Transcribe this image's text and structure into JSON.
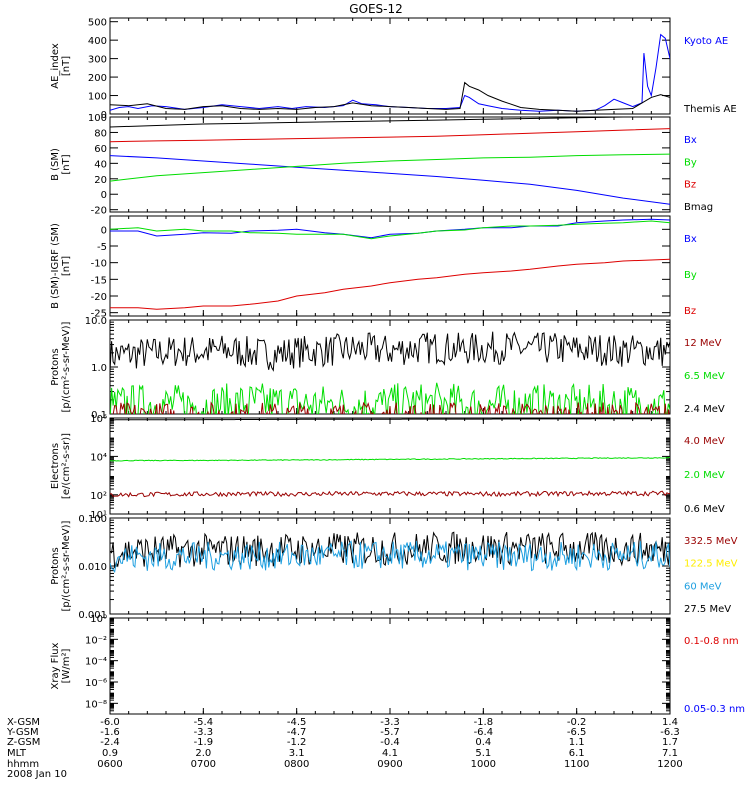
{
  "title": "GOES-12",
  "colors": {
    "black": "#000000",
    "blue": "#0000ff",
    "green": "#00dd00",
    "red": "#dd0000",
    "darkred": "#990000",
    "yellow": "#ffee00",
    "cyan": "#1e9fe0"
  },
  "chart_data": [
    {
      "id": "ae",
      "type": "line",
      "ylabel": [
        "AE_index",
        "[nT]"
      ],
      "ylim": [
        0,
        520
      ],
      "yticks": [
        0,
        100,
        200,
        300,
        400,
        500
      ],
      "ytick_labels": [
        "0",
        "100",
        "200",
        "300",
        "400",
        "500"
      ],
      "legend": [
        {
          "text": "Kyoto AE",
          "color": "#0000ff"
        },
        {
          "text": "Themis AE",
          "color": "#000000"
        }
      ],
      "series": [
        {
          "name": "Kyoto AE",
          "color": "#0000ff",
          "x": [
            6.0,
            6.1,
            6.2,
            6.3,
            6.45,
            6.6,
            6.8,
            7.0,
            7.2,
            7.4,
            7.6,
            7.8,
            7.95,
            8.1,
            8.3,
            8.5,
            8.6,
            8.7,
            8.85,
            9.0,
            9.2,
            9.4,
            9.6,
            9.75,
            9.8,
            9.85,
            9.95,
            10.05,
            10.2,
            10.4,
            10.6,
            10.8,
            11.0,
            11.2,
            11.3,
            11.4,
            11.5,
            11.6,
            11.7,
            11.72,
            11.76,
            11.8,
            11.85,
            11.9,
            11.95,
            12.0
          ],
          "y": [
            20,
            35,
            40,
            30,
            45,
            40,
            25,
            35,
            50,
            40,
            30,
            40,
            30,
            40,
            35,
            45,
            75,
            55,
            50,
            40,
            35,
            30,
            30,
            35,
            100,
            90,
            55,
            45,
            30,
            20,
            15,
            20,
            15,
            20,
            45,
            80,
            60,
            40,
            60,
            330,
            150,
            100,
            250,
            430,
            410,
            300
          ]
        },
        {
          "name": "Themis AE",
          "color": "#000000",
          "x": [
            6.0,
            6.2,
            6.4,
            6.6,
            6.8,
            7.0,
            7.2,
            7.4,
            7.6,
            7.8,
            8.0,
            8.2,
            8.4,
            8.6,
            8.8,
            9.0,
            9.2,
            9.4,
            9.6,
            9.75,
            9.8,
            9.85,
            9.95,
            10.05,
            10.2,
            10.4,
            10.6,
            10.8,
            11.0,
            11.2,
            11.4,
            11.6,
            11.7,
            11.8,
            11.9,
            12.0
          ],
          "y": [
            50,
            45,
            55,
            30,
            25,
            40,
            45,
            30,
            25,
            30,
            25,
            35,
            40,
            60,
            45,
            40,
            35,
            30,
            25,
            30,
            170,
            150,
            130,
            100,
            70,
            35,
            25,
            20,
            15,
            20,
            25,
            30,
            60,
            90,
            105,
            90
          ]
        }
      ]
    },
    {
      "id": "bsm",
      "type": "line",
      "ylabel": [
        "B (SM)",
        "[nT]"
      ],
      "ylim": [
        -23,
        100
      ],
      "yticks": [
        -20,
        0,
        20,
        40,
        60,
        80,
        100
      ],
      "ytick_labels": [
        "-20",
        "0",
        "20",
        "40",
        "60",
        "80",
        "100"
      ],
      "legend": [
        {
          "text": "Bx",
          "color": "#0000ff"
        },
        {
          "text": "By",
          "color": "#00dd00"
        },
        {
          "text": "Bz",
          "color": "#dd0000"
        },
        {
          "text": "Bmag",
          "color": "#000000"
        }
      ],
      "series": [
        {
          "name": "Bx",
          "color": "#0000ff",
          "x": [
            6.0,
            6.5,
            7.0,
            7.5,
            8.0,
            8.5,
            9.0,
            9.5,
            10.0,
            10.5,
            11.0,
            11.5,
            12.0
          ],
          "y": [
            50,
            47,
            43,
            39,
            35,
            31,
            27,
            23,
            18,
            13,
            5,
            -5,
            -13
          ]
        },
        {
          "name": "By",
          "color": "#00dd00",
          "x": [
            6.0,
            6.5,
            7.0,
            7.5,
            8.0,
            8.5,
            9.0,
            9.5,
            10.0,
            10.5,
            11.0,
            11.5,
            12.0
          ],
          "y": [
            17,
            24,
            28,
            32,
            36,
            40,
            43,
            45,
            47,
            48,
            50,
            51,
            52
          ]
        },
        {
          "name": "Bz",
          "color": "#dd0000",
          "x": [
            6.0,
            6.5,
            7.0,
            7.5,
            8.0,
            8.5,
            9.0,
            9.5,
            10.0,
            10.5,
            11.0,
            11.5,
            12.0
          ],
          "y": [
            68,
            69,
            70,
            71,
            72,
            73,
            74,
            75,
            77,
            79,
            81,
            83,
            85
          ]
        },
        {
          "name": "Bmag",
          "color": "#000000",
          "x": [
            6.0,
            6.5,
            7.0,
            7.5,
            8.0,
            8.5,
            9.0,
            9.5,
            10.0,
            10.5,
            11.0,
            11.5,
            12.0
          ],
          "y": [
            87,
            89,
            91,
            92,
            93,
            94,
            95,
            96,
            97,
            98,
            99,
            100,
            101
          ]
        }
      ]
    },
    {
      "id": "bigrf",
      "type": "line",
      "ylabel": [
        "B (SM)-IGRF (SM)",
        "[nT]"
      ],
      "ylim": [
        -26,
        4
      ],
      "yticks": [
        -25,
        -20,
        -15,
        -10,
        -5,
        0
      ],
      "ytick_labels": [
        "-25",
        "-20",
        "-15",
        "-10",
        "-5",
        "0"
      ],
      "legend": [
        {
          "text": "Bx",
          "color": "#0000ff"
        },
        {
          "text": "By",
          "color": "#00dd00"
        },
        {
          "text": "Bz",
          "color": "#dd0000"
        }
      ],
      "series": [
        {
          "name": "Bx",
          "color": "#0000ff",
          "x": [
            6.0,
            6.3,
            6.5,
            6.8,
            7.0,
            7.3,
            7.5,
            7.8,
            8.0,
            8.3,
            8.5,
            8.8,
            9.0,
            9.3,
            9.5,
            9.8,
            10.0,
            10.3,
            10.5,
            10.8,
            11.0,
            11.3,
            11.5,
            11.8,
            12.0
          ],
          "y": [
            -0.5,
            -0.5,
            -2,
            -1.5,
            -1,
            -1.2,
            -0.5,
            -0.3,
            0,
            -1,
            -1.5,
            -2.5,
            -1.5,
            -1.2,
            -0.5,
            0,
            0.5,
            0.5,
            1,
            1,
            2,
            2.5,
            2.8,
            3,
            2.8
          ]
        },
        {
          "name": "By",
          "color": "#00dd00",
          "x": [
            6.0,
            6.3,
            6.5,
            6.8,
            7.0,
            7.3,
            7.5,
            7.8,
            8.0,
            8.3,
            8.5,
            8.8,
            9.0,
            9.3,
            9.5,
            9.8,
            10.0,
            10.3,
            10.5,
            10.8,
            11.0,
            11.3,
            11.5,
            11.8,
            12.0
          ],
          "y": [
            0,
            0.5,
            -0.5,
            0,
            -0.5,
            -0.5,
            -1,
            -1.2,
            -1.5,
            -1.5,
            -1.5,
            -2.8,
            -2,
            -1.2,
            -0.5,
            -0.2,
            0.5,
            1,
            1,
            1.2,
            1.5,
            1.8,
            2,
            2.5,
            2
          ]
        },
        {
          "name": "Bz",
          "color": "#dd0000",
          "x": [
            6.0,
            6.3,
            6.5,
            6.8,
            7.0,
            7.3,
            7.5,
            7.8,
            8.0,
            8.3,
            8.5,
            8.8,
            9.0,
            9.3,
            9.5,
            9.8,
            10.0,
            10.3,
            10.5,
            10.8,
            11.0,
            11.3,
            11.5,
            11.8,
            12.0
          ],
          "y": [
            -23.5,
            -23.5,
            -24,
            -23.5,
            -23,
            -23,
            -22.5,
            -21.5,
            -20,
            -19,
            -18,
            -17,
            -16,
            -15,
            -14.5,
            -13.5,
            -13,
            -12.5,
            -12,
            -11,
            -10.5,
            -10,
            -9.5,
            -9.2,
            -9
          ]
        }
      ]
    },
    {
      "id": "protons1",
      "type": "line",
      "scale": "log",
      "ylabel": [
        "Protons",
        "[p/(cm²-s-sr-MeV)]"
      ],
      "ylim": [
        0.1,
        10
      ],
      "yticks": [
        0.1,
        1,
        10
      ],
      "ytick_labels": [
        "0.1",
        "1.0",
        "10.0"
      ],
      "legend": [
        {
          "text": "12 MeV",
          "color": "#990000"
        },
        {
          "text": "6.5 MeV",
          "color": "#00dd00"
        },
        {
          "text": "2.4 MeV",
          "color": "#000000"
        }
      ],
      "series": [
        {
          "name": "2.4 MeV",
          "color": "#000000",
          "x": [
            6.0,
            6.25,
            6.5,
            6.75,
            7.0,
            7.25,
            7.5,
            7.75,
            8.0,
            8.25,
            8.5,
            8.75,
            9.0,
            9.25,
            9.5,
            9.75,
            10.0,
            10.25,
            10.5,
            10.75,
            11.0,
            11.25,
            11.5,
            11.75,
            12.0
          ],
          "y": [
            1.8,
            1.9,
            2.0,
            2.2,
            2.1,
            2.3,
            2.0,
            1.9,
            2.1,
            2.2,
            2.3,
            2.4,
            2.2,
            2.5,
            2.6,
            2.4,
            2.5,
            2.6,
            2.4,
            2.5,
            2.3,
            2.4,
            2.2,
            2.3,
            2.1
          ],
          "noise": 0.35
        },
        {
          "name": "6.5 MeV",
          "color": "#00dd00",
          "x": [
            6.0,
            6.5,
            7.0,
            7.5,
            8.0,
            8.5,
            9.0,
            9.5,
            10.0,
            10.5,
            11.0,
            11.5,
            12.0
          ],
          "y": [
            0.15,
            0.16,
            0.15,
            0.17,
            0.16,
            0.15,
            0.16,
            0.17,
            0.15,
            0.16,
            0.15,
            0.16,
            0.15
          ],
          "noise": 0.45
        },
        {
          "name": "12 MeV",
          "color": "#990000",
          "x": [
            6.0,
            6.5,
            7.0,
            7.5,
            8.0,
            8.5,
            9.0,
            9.5,
            10.0,
            10.5,
            11.0,
            11.5,
            12.0
          ],
          "y": [
            0.09,
            0.09,
            0.09,
            0.09,
            0.09,
            0.09,
            0.09,
            0.09,
            0.09,
            0.09,
            0.09,
            0.09,
            0.09
          ],
          "noise": 0.3
        }
      ]
    },
    {
      "id": "electrons",
      "type": "line",
      "scale": "log",
      "ylabel": [
        "Electrons",
        "[e/(cm²-s-sr)]"
      ],
      "ylim": [
        10,
        1000000
      ],
      "yticks": [
        10,
        100,
        10000,
        1000000
      ],
      "ytick_labels": [
        "10¹",
        "10²",
        "10⁴",
        "10⁶"
      ],
      "legend": [
        {
          "text": "4.0 MeV",
          "color": "#990000"
        },
        {
          "text": "2.0 MeV",
          "color": "#00dd00"
        },
        {
          "text": "0.6 MeV",
          "color": "#000000"
        }
      ],
      "series": [
        {
          "name": "0.6 MeV",
          "color": "#000000",
          "x": [
            6.0,
            7.0,
            8.0,
            9.0,
            10.0,
            11.0,
            12.0
          ],
          "y": [
            800000,
            820000,
            850000,
            870000,
            880000,
            900000,
            920000
          ],
          "noise": 0.0
        },
        {
          "name": "2.0 MeV",
          "color": "#00dd00",
          "x": [
            6.0,
            7.0,
            8.0,
            9.0,
            10.0,
            11.0,
            12.0
          ],
          "y": [
            6000,
            6200,
            6500,
            7000,
            7500,
            8000,
            8500
          ],
          "noise": 0.02
        },
        {
          "name": "4.0 MeV",
          "color": "#990000",
          "x": [
            6.0,
            7.0,
            8.0,
            9.0,
            10.0,
            11.0,
            12.0
          ],
          "y": [
            100,
            110,
            110,
            115,
            110,
            115,
            120
          ],
          "noise": 0.12
        }
      ]
    },
    {
      "id": "protons2",
      "type": "line",
      "scale": "log",
      "ylabel": [
        "Protons",
        "[p/(cm²-s-sr-MeV)]"
      ],
      "ylim": [
        0.001,
        0.1
      ],
      "yticks": [
        0.001,
        0.01,
        0.1
      ],
      "ytick_labels": [
        "0.001",
        "0.010",
        "0.100"
      ],
      "legend": [
        {
          "text": "332.5 MeV",
          "color": "#990000"
        },
        {
          "text": "122.5 MeV",
          "color": "#ffee00"
        },
        {
          "text": "60 MeV",
          "color": "#1e9fe0"
        },
        {
          "text": "27.5 MeV",
          "color": "#000000"
        }
      ],
      "series": [
        {
          "name": "27.5 MeV",
          "color": "#000000",
          "x": [
            6.0,
            7.0,
            8.0,
            9.0,
            10.0,
            11.0,
            12.0
          ],
          "y": [
            0.02,
            0.021,
            0.022,
            0.023,
            0.024,
            0.023,
            0.022
          ],
          "noise": 0.35
        },
        {
          "name": "60 MeV",
          "color": "#1e9fe0",
          "x": [
            6.0,
            7.0,
            8.0,
            9.0,
            10.0,
            11.0,
            12.0
          ],
          "y": [
            0.015,
            0.016,
            0.016,
            0.017,
            0.016,
            0.016,
            0.017
          ],
          "noise": 0.3
        }
      ]
    },
    {
      "id": "xray",
      "type": "line",
      "scale": "log",
      "ylabel": [
        "Xray Flux",
        "[W/m²]"
      ],
      "ylim": [
        1e-09,
        1
      ],
      "yticks": [
        1,
        0.01,
        0.0001,
        1e-06,
        1e-08
      ],
      "ytick_labels": [
        "10⁰",
        "10⁻²",
        "10⁻⁴",
        "10⁻⁶",
        "10⁻⁸"
      ],
      "legend": [
        {
          "text": "0.1-0.8 nm",
          "color": "#dd0000"
        },
        {
          "text": "0.05-0.3 nm",
          "color": "#0000ff"
        }
      ],
      "series": []
    }
  ],
  "xaxis": {
    "xlim": [
      6.0,
      12.0
    ],
    "ticks": [
      6.0,
      7.0,
      8.0,
      9.0,
      10.0,
      11.0,
      12.0
    ],
    "rows": [
      {
        "label": "X-GSM",
        "values": [
          "-6.0",
          "-5.4",
          "-4.5",
          "-3.3",
          "-1.8",
          "-0.2",
          "1.4"
        ]
      },
      {
        "label": "Y-GSM",
        "values": [
          "-1.6",
          "-3.3",
          "-4.7",
          "-5.7",
          "-6.4",
          "-6.5",
          "-6.3"
        ]
      },
      {
        "label": "Z-GSM",
        "values": [
          "-2.4",
          "-1.9",
          "-1.2",
          "-0.4",
          "0.4",
          "1.1",
          "1.7"
        ]
      },
      {
        "label": "MLT",
        "values": [
          "0.9",
          "2.0",
          "3.1",
          "4.1",
          "5.1",
          "6.1",
          "7.1"
        ]
      },
      {
        "label": "hhmm",
        "values": [
          "0600",
          "0700",
          "0800",
          "0900",
          "1000",
          "1100",
          "1200"
        ]
      }
    ],
    "date": "2008 Jan 10"
  }
}
